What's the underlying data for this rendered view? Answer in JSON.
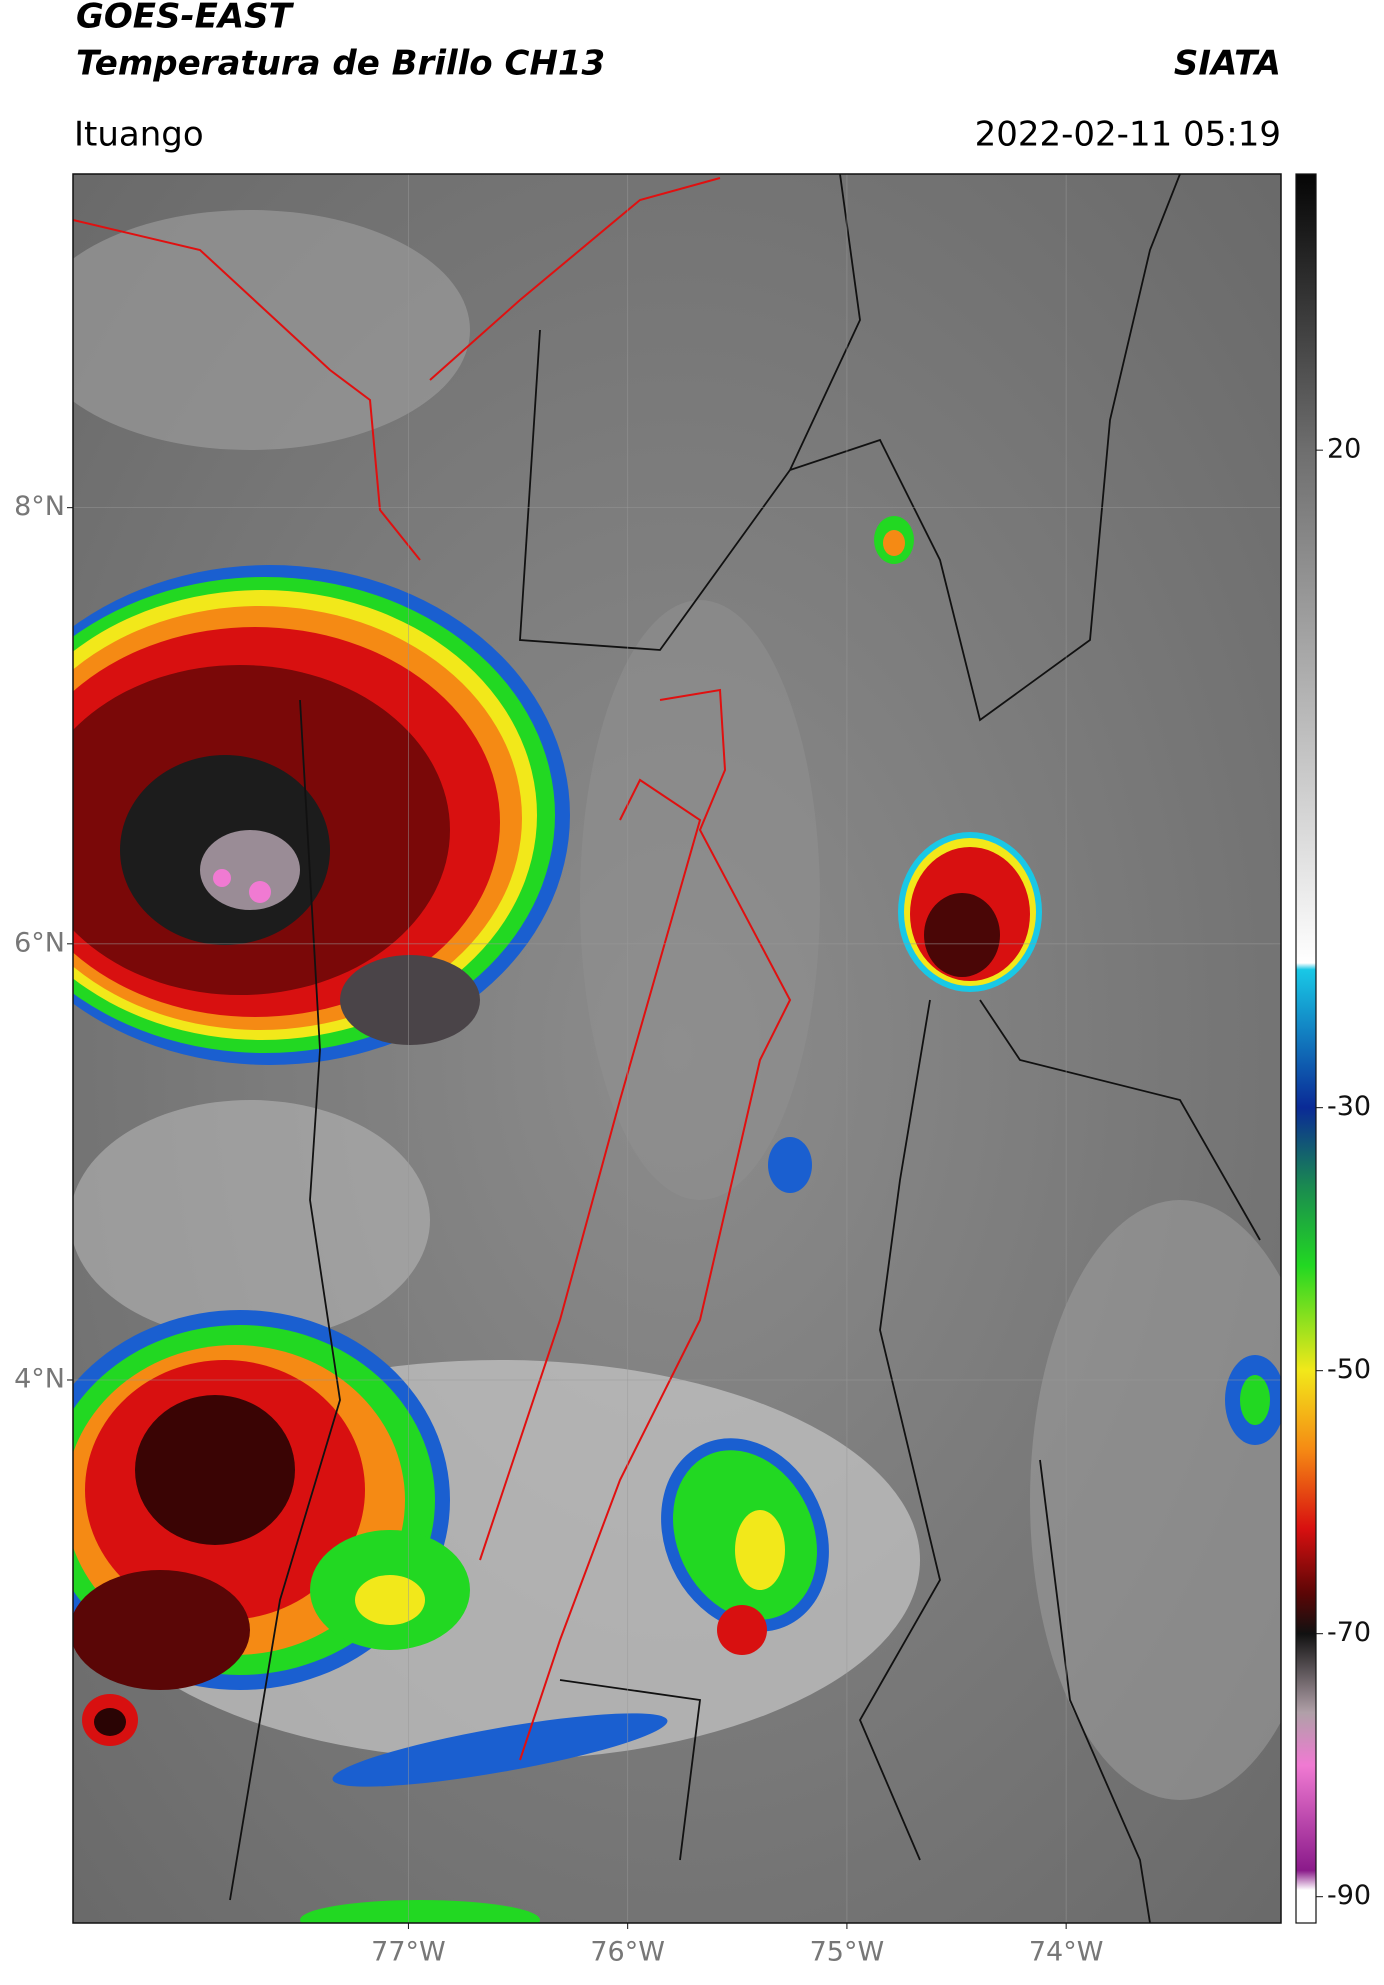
{
  "header": {
    "title": "GOES-EAST",
    "subtitle": "Temperatura de Brillo CH13",
    "source": "SIATA",
    "location": "Ituango",
    "datetime": "2022-02-11 05:19"
  },
  "map": {
    "type": "map",
    "xlim": [
      -78.53,
      -73.02
    ],
    "ylim": [
      1.51,
      9.53
    ],
    "xticks": [
      {
        "value": -77,
        "label": "77°W"
      },
      {
        "value": -76,
        "label": "76°W"
      },
      {
        "value": -75,
        "label": "75°W"
      },
      {
        "value": -74,
        "label": "74°W"
      }
    ],
    "yticks": [
      {
        "value": 4,
        "label": "4°N"
      },
      {
        "value": 6,
        "label": "6°N"
      },
      {
        "value": 8,
        "label": "8°N"
      }
    ],
    "grid": true
  },
  "colorbar": {
    "lim": [
      -92,
      41
    ],
    "ticks": [
      20,
      -30,
      -50,
      -70,
      -90
    ],
    "stops": [
      {
        "value": 41,
        "color": "#050505"
      },
      {
        "value": 20,
        "color": "#6e6e6e"
      },
      {
        "value": -19,
        "color": "#ffffff"
      },
      {
        "value": -19.5,
        "color": "#19c8e6"
      },
      {
        "value": -30,
        "color": "#0a2a96"
      },
      {
        "value": -36,
        "color": "#1a8a50"
      },
      {
        "value": -42,
        "color": "#22d822"
      },
      {
        "value": -50,
        "color": "#f2e81a"
      },
      {
        "value": -56,
        "color": "#f58a14"
      },
      {
        "value": -62,
        "color": "#d81010"
      },
      {
        "value": -67,
        "color": "#5a0606"
      },
      {
        "value": -70,
        "color": "#111111"
      },
      {
        "value": -76,
        "color": "#b0a0a8"
      },
      {
        "value": -80,
        "color": "#f07ad2"
      },
      {
        "value": -88,
        "color": "#8a1a8a"
      },
      {
        "value": -89.5,
        "color": "#ffffff"
      },
      {
        "value": -92,
        "color": "#ffffff"
      }
    ]
  }
}
